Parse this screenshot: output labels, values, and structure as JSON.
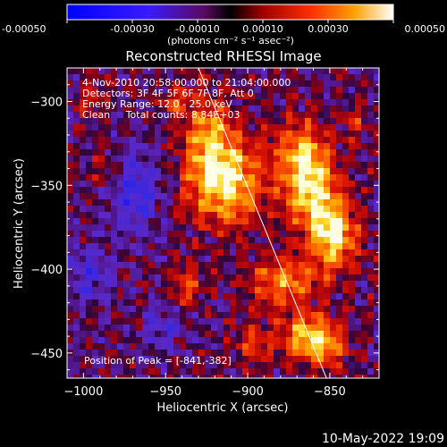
{
  "colorbar": {
    "units": "(photons cm⁻² s⁻¹ asec⁻²)",
    "ticks": [
      "-0.00050",
      "-0.00030",
      "-0.00010",
      "0.00010",
      "0.00030",
      "0.00050"
    ],
    "range": [
      -0.0005,
      0.0005
    ]
  },
  "footer": {
    "timestamp": "10-May-2022 19:09"
  },
  "chart_data": {
    "type": "heatmap",
    "title": "Reconstructed RHESSI Image",
    "xlabel": "Heliocentric X (arcsec)",
    "ylabel": "Heliocentric Y (arcsec)",
    "xlim": [
      -1010,
      -820
    ],
    "ylim": [
      -465,
      -280
    ],
    "x_ticks": [
      -1000,
      -950,
      -900,
      -850
    ],
    "y_ticks": [
      -300,
      -350,
      -400,
      -450
    ],
    "x_tick_labels": [
      "−1000",
      "−950",
      "−900",
      "−850"
    ],
    "y_tick_labels": [
      "−300",
      "−350",
      "−400",
      "−450"
    ],
    "info_lines": [
      "4-Nov-2010 20:58:00.000 to 21:04:00.000",
      "Detectors: 3F 4F 5F 6F 7F 8F, Att 0",
      "Energy Range: 12.0 - 25.0 keV",
      "Clean     Total counts: 8.84E+03"
    ],
    "peak_label": "Position of Peak = [-841,-382]",
    "peak": [
      -841,
      -382
    ],
    "limb_line": [
      [
        -930,
        -280
      ],
      [
        -852,
        -465
      ]
    ],
    "sources": [
      {
        "x": -914,
        "y": -347,
        "amp": 1.0,
        "sx": 16,
        "sy": 18
      },
      {
        "x": -925,
        "y": -318,
        "amp": 0.55,
        "sx": 10,
        "sy": 15
      },
      {
        "x": -868,
        "y": -328,
        "amp": 0.6,
        "sx": 10,
        "sy": 12
      },
      {
        "x": -862,
        "y": -352,
        "amp": 0.85,
        "sx": 12,
        "sy": 16
      },
      {
        "x": -848,
        "y": -380,
        "amp": 0.95,
        "sx": 10,
        "sy": 14
      },
      {
        "x": -878,
        "y": -408,
        "amp": 0.65,
        "sx": 14,
        "sy": 10
      },
      {
        "x": -866,
        "y": -440,
        "amp": 0.7,
        "sx": 10,
        "sy": 10
      },
      {
        "x": -852,
        "y": -445,
        "amp": 0.6,
        "sx": 9,
        "sy": 9
      },
      {
        "x": -995,
        "y": -298,
        "amp": 0.3,
        "sx": 6,
        "sy": 8
      },
      {
        "x": -984,
        "y": -340,
        "amp": 0.3,
        "sx": 7,
        "sy": 9
      },
      {
        "x": -937,
        "y": -409,
        "amp": 0.45,
        "sx": 6,
        "sy": 10
      },
      {
        "x": -895,
        "y": -445,
        "amp": 0.4,
        "sx": 8,
        "sy": 8
      },
      {
        "x": -944,
        "y": -300,
        "amp": 0.35,
        "sx": 6,
        "sy": 6
      },
      {
        "x": -835,
        "y": -311,
        "amp": 0.3,
        "sx": 5,
        "sy": 7
      }
    ],
    "negative_regions": [
      {
        "x": -968,
        "y": -352,
        "amp": -0.45,
        "sx": 12,
        "sy": 18
      },
      {
        "x": -996,
        "y": -402,
        "amp": -0.35,
        "sx": 10,
        "sy": 12
      },
      {
        "x": -952,
        "y": -435,
        "amp": -0.3,
        "sx": 10,
        "sy": 10
      }
    ]
  }
}
